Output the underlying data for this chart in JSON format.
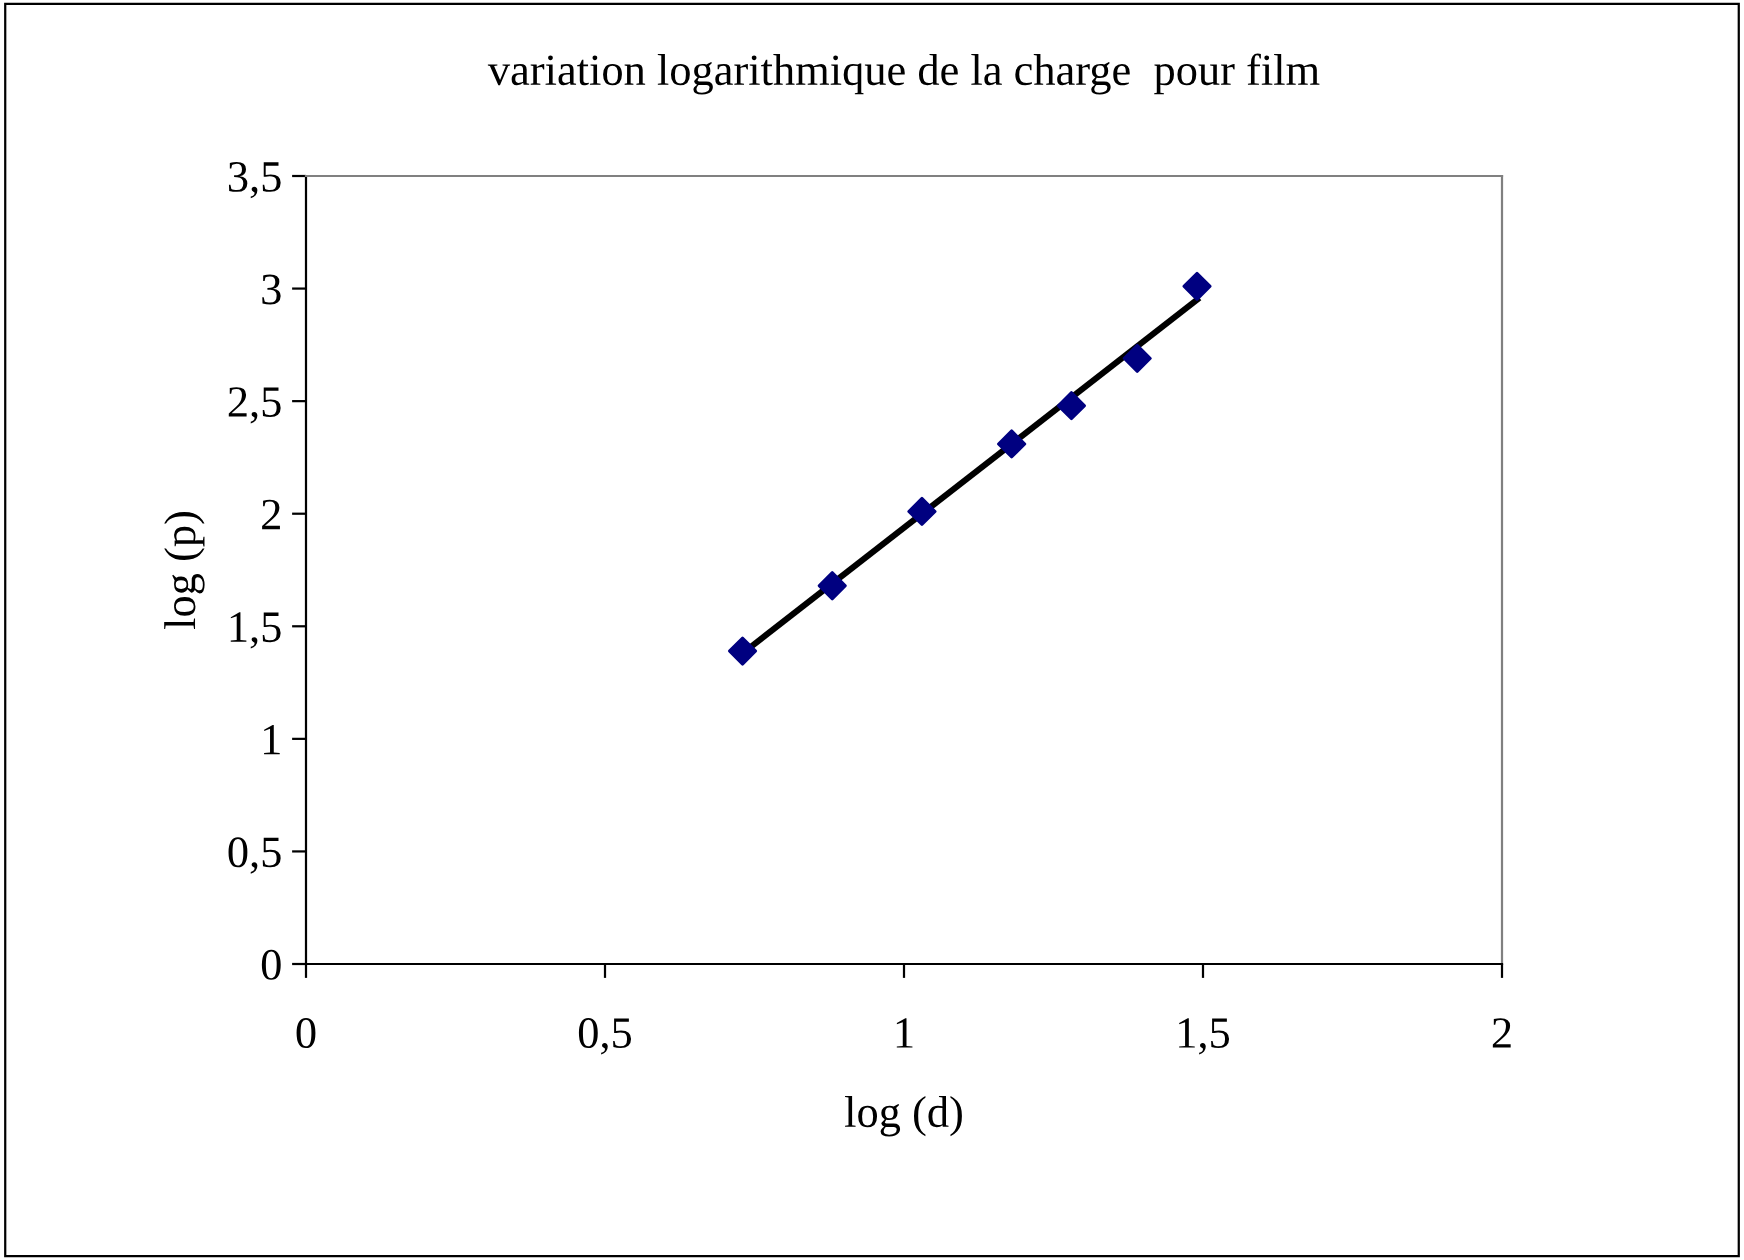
{
  "chart_data": {
    "type": "scatter",
    "title": "variation logarithmique de la charge  pour film",
    "xlabel": "log (d)",
    "ylabel": "log (p)",
    "xlim": [
      0,
      2
    ],
    "xticks": [
      0,
      {
        "value": 0.5,
        "label": "0,5"
      },
      1,
      {
        "value": 1.5,
        "label": "1,5"
      },
      2
    ],
    "ylim": [
      0,
      3.5
    ],
    "yticks": [
      0,
      {
        "value": 0.5,
        "label": "0,5"
      },
      1,
      {
        "value": 1.5,
        "label": "1,5"
      },
      2,
      {
        "value": 2.5,
        "label": "2,5"
      },
      3,
      {
        "value": 3.5,
        "label": "3,5"
      }
    ],
    "grid": false,
    "legend": false,
    "marker": "diamond",
    "series": [
      {
        "color": "#000080",
        "x": [
          0.73,
          0.88,
          1.03,
          1.18,
          1.28,
          1.39,
          1.49
        ],
        "values": [
          1.39,
          1.68,
          2.01,
          2.31,
          2.48,
          2.69,
          3.01
        ]
      },
      {
        "type": "line",
        "color": "#000000",
        "marker": "none",
        "line_style": "solid",
        "x": [
          0.73,
          1.49
        ],
        "values": [
          1.38,
          2.95
        ]
      }
    ]
  }
}
